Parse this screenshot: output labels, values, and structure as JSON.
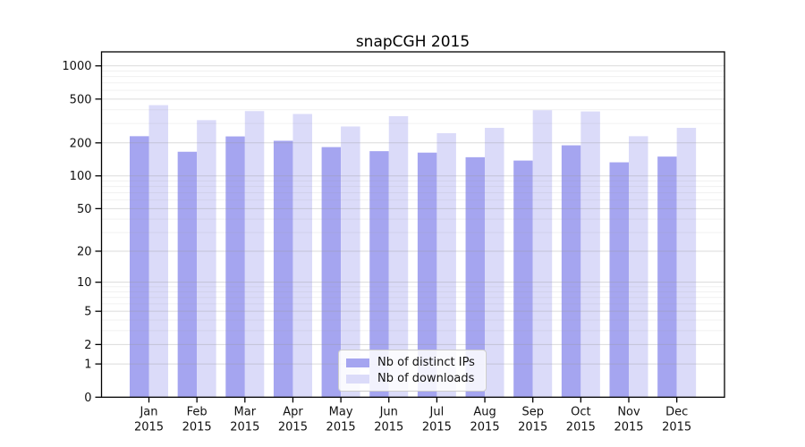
{
  "chart_data": {
    "type": "bar",
    "title": "snapCGH 2015",
    "scale": "log1p",
    "categories": [
      "Jan",
      "Feb",
      "Mar",
      "Apr",
      "May",
      "Jun",
      "Jul",
      "Aug",
      "Sep",
      "Oct",
      "Nov",
      "Dec"
    ],
    "year": "2015",
    "series": [
      {
        "name": "Nb of distinct IPs",
        "key": "distinct-ips",
        "color": "#a5a5f0",
        "values": [
          230,
          166,
          229,
          209,
          183,
          168,
          163,
          148,
          138,
          190,
          133,
          150
        ]
      },
      {
        "name": "Nb of downloads",
        "key": "downloads",
        "color": "#dbdbf9",
        "values": [
          440,
          322,
          389,
          366,
          282,
          350,
          245,
          274,
          396,
          386,
          230,
          274
        ]
      }
    ],
    "yticks": [
      0,
      1,
      2,
      5,
      10,
      20,
      50,
      100,
      200,
      500,
      1000
    ],
    "ylim": [
      0,
      1340
    ],
    "grid": true,
    "legend_position": "lower-center"
  },
  "colors": {
    "background": "#ffffff",
    "spine": "#000000",
    "grid": "#999999",
    "text": "#111111",
    "legend_border": "#cccccc"
  }
}
